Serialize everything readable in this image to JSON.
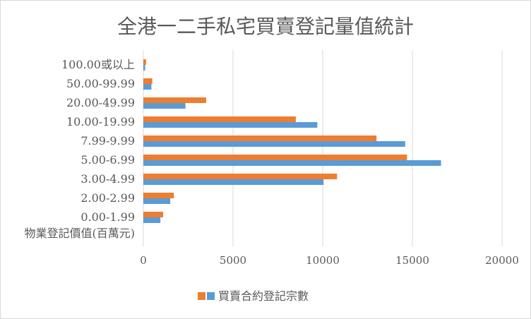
{
  "chart_data": {
    "type": "bar",
    "orientation": "horizontal",
    "title": "全港一二手私宅買賣登記量值統計",
    "category_axis_title": "物業登記價值(百萬元)",
    "categories": [
      "0.00-1.99",
      "2.00-2.99",
      "3.00-4.99",
      "5.00-6.99",
      "7.99-9.99",
      "10.00-19.99",
      "20.00-49.99",
      "50.00-99.99",
      "100.00或以上"
    ],
    "series": [
      {
        "name": "",
        "color": "#ED7D31",
        "values": [
          1100,
          1700,
          10800,
          14700,
          13000,
          8500,
          3500,
          500,
          150
        ]
      },
      {
        "name": "",
        "color": "#5B9BD5",
        "values": [
          950,
          1500,
          10050,
          16600,
          14600,
          9700,
          2350,
          450,
          100
        ]
      }
    ],
    "legend_label": "買賣合約登記宗數",
    "xlim": [
      0,
      20000
    ],
    "x_ticks": [
      "0",
      "5000",
      "10000",
      "15000",
      "20000"
    ],
    "grid": true,
    "legend_position": "bottom"
  }
}
